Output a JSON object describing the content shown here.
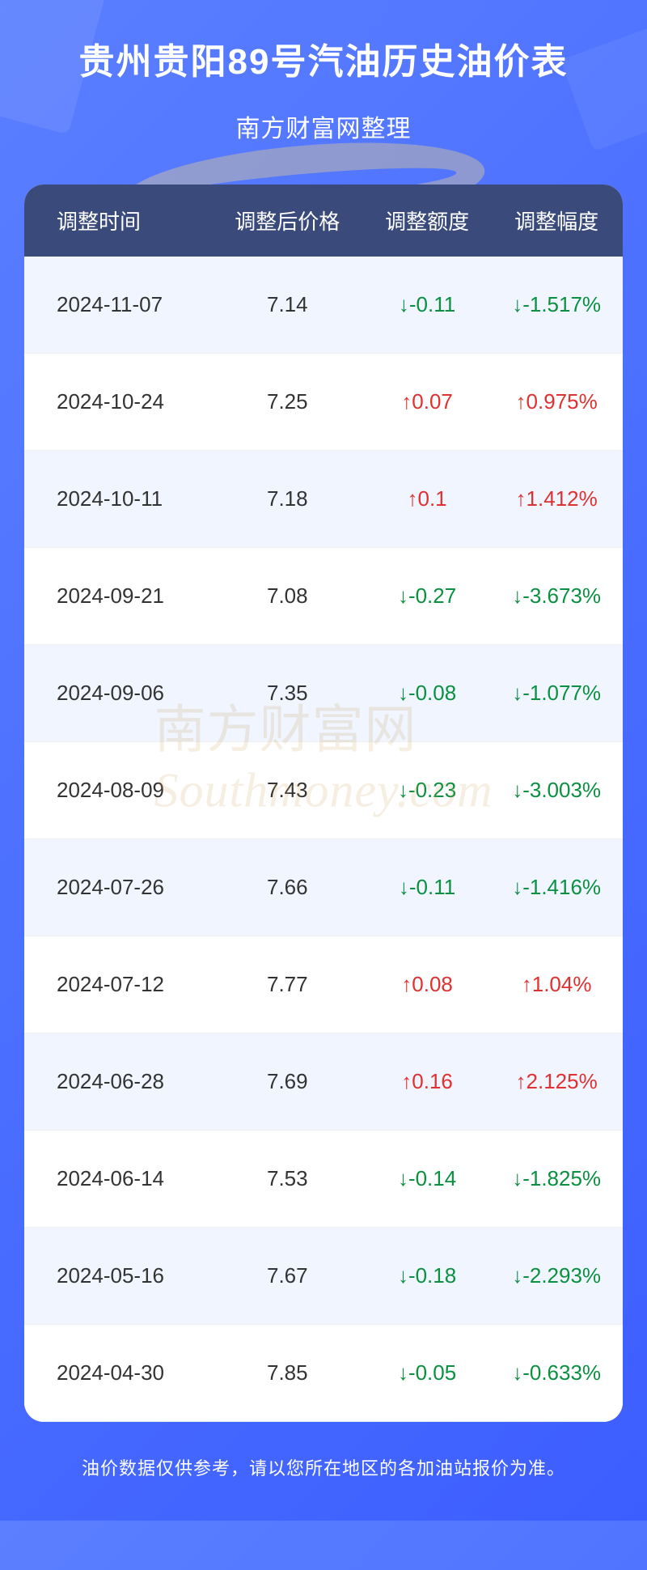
{
  "header": {
    "title": "贵州贵阳89号汽油历史油价表",
    "subtitle": "南方财富网整理"
  },
  "watermark": {
    "cn": "南方财富网",
    "en": "outhmoney.com"
  },
  "table": {
    "columns": [
      "调整时间",
      "调整后价格",
      "调整额度",
      "调整幅度"
    ],
    "rows": [
      {
        "date": "2024-11-07",
        "price": "7.14",
        "amount": "↓-0.11",
        "amount_dir": "down",
        "percent": "↓-1.517%",
        "percent_dir": "down"
      },
      {
        "date": "2024-10-24",
        "price": "7.25",
        "amount": "↑0.07",
        "amount_dir": "up",
        "percent": "↑0.975%",
        "percent_dir": "up"
      },
      {
        "date": "2024-10-11",
        "price": "7.18",
        "amount": "↑0.1",
        "amount_dir": "up",
        "percent": "↑1.412%",
        "percent_dir": "up"
      },
      {
        "date": "2024-09-21",
        "price": "7.08",
        "amount": "↓-0.27",
        "amount_dir": "down",
        "percent": "↓-3.673%",
        "percent_dir": "down"
      },
      {
        "date": "2024-09-06",
        "price": "7.35",
        "amount": "↓-0.08",
        "amount_dir": "down",
        "percent": "↓-1.077%",
        "percent_dir": "down"
      },
      {
        "date": "2024-08-09",
        "price": "7.43",
        "amount": "↓-0.23",
        "amount_dir": "down",
        "percent": "↓-3.003%",
        "percent_dir": "down"
      },
      {
        "date": "2024-07-26",
        "price": "7.66",
        "amount": "↓-0.11",
        "amount_dir": "down",
        "percent": "↓-1.416%",
        "percent_dir": "down"
      },
      {
        "date": "2024-07-12",
        "price": "7.77",
        "amount": "↑0.08",
        "amount_dir": "up",
        "percent": "↑1.04%",
        "percent_dir": "up"
      },
      {
        "date": "2024-06-28",
        "price": "7.69",
        "amount": "↑0.16",
        "amount_dir": "up",
        "percent": "↑2.125%",
        "percent_dir": "up"
      },
      {
        "date": "2024-06-14",
        "price": "7.53",
        "amount": "↓-0.14",
        "amount_dir": "down",
        "percent": "↓-1.825%",
        "percent_dir": "down"
      },
      {
        "date": "2024-05-16",
        "price": "7.67",
        "amount": "↓-0.18",
        "amount_dir": "down",
        "percent": "↓-2.293%",
        "percent_dir": "down"
      },
      {
        "date": "2024-04-30",
        "price": "7.85",
        "amount": "↓-0.05",
        "amount_dir": "down",
        "percent": "↓-0.633%",
        "percent_dir": "down"
      }
    ]
  },
  "footer": {
    "note": "油价数据仅供参考，请以您所在地区的各加油站报价为准。"
  },
  "colors": {
    "bg_gradient_start": "#5b7fff",
    "bg_gradient_end": "#3d5eff",
    "header_bg": "#3a4a7a",
    "row_odd_bg": "#f0f5ff",
    "row_even_bg": "#ffffff",
    "up_color": "#e03030",
    "down_color": "#0a9040",
    "text_color": "#333333",
    "white": "#ffffff"
  }
}
